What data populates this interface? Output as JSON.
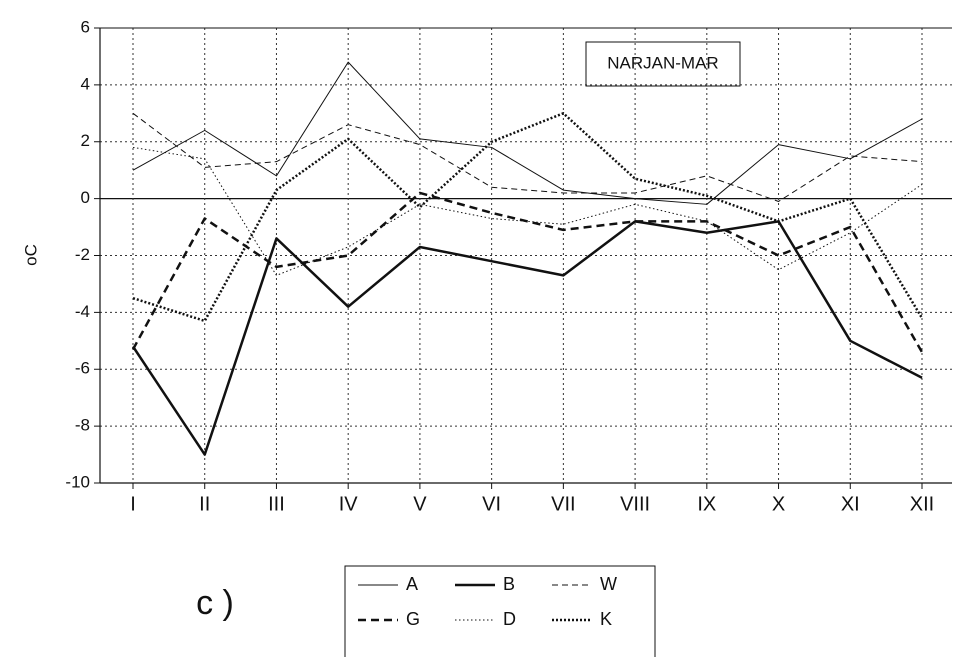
{
  "chart_data": {
    "type": "line",
    "annotation": "NARJAN-MAR",
    "y_label": "oC",
    "panel_label": "c )",
    "categories": [
      "I",
      "II",
      "III",
      "IV",
      "V",
      "VI",
      "VII",
      "VIII",
      "IX",
      "X",
      "XI",
      "XII"
    ],
    "ylim": [
      -10,
      6
    ],
    "yticks": [
      -10,
      -8,
      -6,
      -4,
      -2,
      0,
      2,
      4,
      6
    ],
    "grid": true,
    "series": [
      {
        "name": "A",
        "color": "#111111",
        "line_style": "solid",
        "line_width": 1,
        "values": [
          1.0,
          2.4,
          0.8,
          4.8,
          2.1,
          1.8,
          0.3,
          0.0,
          -0.2,
          1.9,
          1.4,
          2.8
        ]
      },
      {
        "name": "B",
        "color": "#111111",
        "line_style": "solid",
        "line_width": 2.5,
        "values": [
          -5.2,
          -9.0,
          -1.4,
          -3.8,
          -1.7,
          -2.2,
          -2.7,
          -0.8,
          -1.2,
          -0.8,
          -5.0,
          -6.3
        ]
      },
      {
        "name": "W",
        "color": "#111111",
        "line_style": "dashed",
        "line_width": 1,
        "values": [
          3.0,
          1.1,
          1.3,
          2.6,
          1.9,
          0.4,
          0.2,
          0.2,
          0.8,
          -0.1,
          1.5,
          1.3
        ]
      },
      {
        "name": "G",
        "color": "#111111",
        "line_style": "dashed",
        "line_width": 2.5,
        "values": [
          -5.3,
          -0.7,
          -2.4,
          -2.0,
          0.2,
          -0.5,
          -1.1,
          -0.8,
          -0.8,
          -2.0,
          -1.0,
          -5.4
        ]
      },
      {
        "name": "D",
        "color": "#111111",
        "line_style": "dotted",
        "line_width": 1,
        "values": [
          1.8,
          1.4,
          -2.7,
          -1.7,
          -0.2,
          -0.7,
          -0.9,
          -0.2,
          -0.8,
          -2.5,
          -1.2,
          0.5
        ]
      },
      {
        "name": "K",
        "color": "#111111",
        "line_style": "dotted",
        "line_width": 2.5,
        "values": [
          -3.5,
          -4.3,
          0.3,
          2.1,
          -0.3,
          2.0,
          3.0,
          0.7,
          0.1,
          -0.8,
          0.0,
          -4.2
        ]
      }
    ]
  }
}
